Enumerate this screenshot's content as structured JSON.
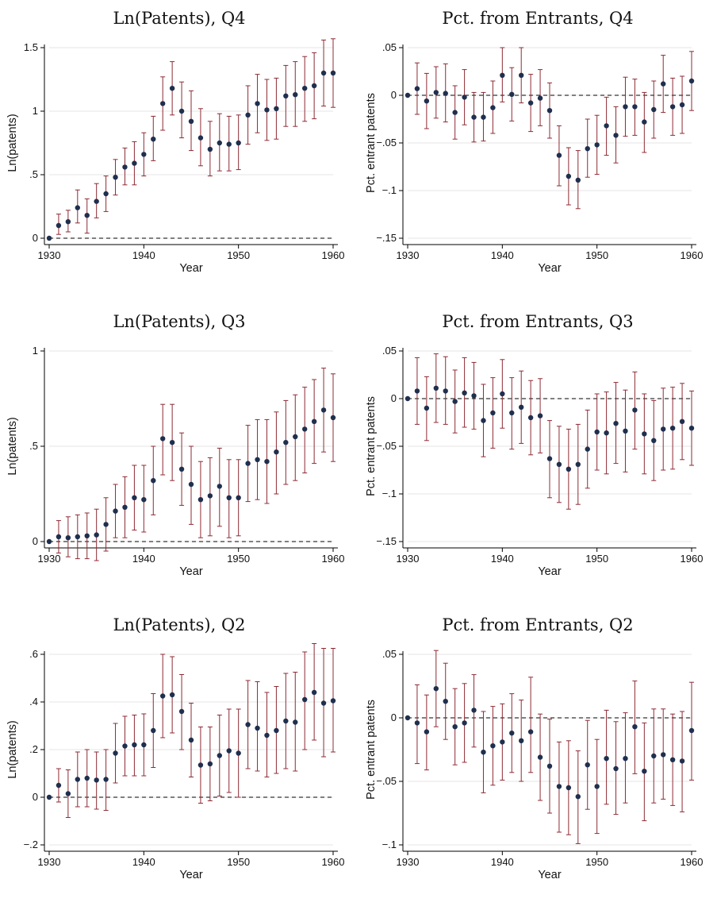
{
  "chart_data": [
    {
      "type": "scatter",
      "title": "Ln(Patents), Q4",
      "xlabel": "Year",
      "ylabel": "Ln(patents)",
      "xlim": [
        1930,
        1960
      ],
      "ylim": [
        0,
        1.5
      ],
      "xticks": [
        1930,
        1940,
        1950,
        1960
      ],
      "yticks": [
        0,
        0.5,
        1,
        1.5
      ],
      "yticklabels": [
        "0",
        ".5",
        "1",
        "1.5"
      ],
      "reference_line_y": 0,
      "grid": true,
      "x": [
        1930,
        1931,
        1932,
        1933,
        1934,
        1935,
        1936,
        1937,
        1938,
        1939,
        1940,
        1941,
        1942,
        1943,
        1944,
        1945,
        1946,
        1947,
        1948,
        1949,
        1950,
        1951,
        1952,
        1953,
        1954,
        1955,
        1956,
        1957,
        1958,
        1959,
        1960
      ],
      "y": [
        0,
        0.1,
        0.13,
        0.24,
        0.18,
        0.29,
        0.35,
        0.48,
        0.56,
        0.59,
        0.66,
        0.78,
        1.06,
        1.18,
        1.0,
        0.92,
        0.79,
        0.7,
        0.75,
        0.74,
        0.75,
        0.97,
        1.06,
        1.01,
        1.02,
        1.12,
        1.13,
        1.18,
        1.2,
        1.3,
        1.3
      ],
      "ci_low": [
        0,
        0.03,
        0.05,
        0.12,
        0.04,
        0.16,
        0.21,
        0.34,
        0.42,
        0.42,
        0.49,
        0.61,
        0.85,
        0.97,
        0.79,
        0.69,
        0.57,
        0.49,
        0.53,
        0.53,
        0.54,
        0.74,
        0.83,
        0.77,
        0.78,
        0.88,
        0.88,
        0.92,
        0.94,
        1.04,
        1.03
      ],
      "ci_high": [
        0,
        0.19,
        0.22,
        0.38,
        0.31,
        0.43,
        0.49,
        0.62,
        0.71,
        0.76,
        0.83,
        0.96,
        1.27,
        1.39,
        1.23,
        1.16,
        1.02,
        0.92,
        0.98,
        0.96,
        0.97,
        1.2,
        1.29,
        1.25,
        1.26,
        1.36,
        1.39,
        1.43,
        1.46,
        1.56,
        1.57
      ]
    },
    {
      "type": "scatter",
      "title": "Pct. from Entrants, Q4",
      "xlabel": "Year",
      "ylabel": "Pct. entrant patents",
      "xlim": [
        1930,
        1960
      ],
      "ylim": [
        -0.15,
        0.05
      ],
      "xticks": [
        1930,
        1940,
        1950,
        1960
      ],
      "yticks": [
        -0.15,
        -0.1,
        -0.05,
        0,
        0.05
      ],
      "yticklabels": [
        "-.15",
        "-.1",
        "-.05",
        "0",
        ".05"
      ],
      "reference_line_y": 0,
      "grid": true,
      "x": [
        1930,
        1931,
        1932,
        1933,
        1934,
        1935,
        1936,
        1937,
        1938,
        1939,
        1940,
        1941,
        1942,
        1943,
        1944,
        1945,
        1946,
        1947,
        1948,
        1949,
        1950,
        1951,
        1952,
        1953,
        1954,
        1955,
        1956,
        1957,
        1958,
        1959,
        1960
      ],
      "y": [
        0,
        0.007,
        -0.006,
        0.003,
        0.002,
        -0.018,
        -0.002,
        -0.023,
        -0.023,
        -0.013,
        0.021,
        0.001,
        0.021,
        -0.008,
        -0.003,
        -0.016,
        -0.063,
        -0.085,
        -0.089,
        -0.056,
        -0.052,
        -0.032,
        -0.042,
        -0.012,
        -0.012,
        -0.028,
        -0.015,
        0.012,
        -0.012,
        -0.01,
        0.015
      ],
      "ci_low": [
        0,
        -0.02,
        -0.035,
        -0.024,
        -0.028,
        -0.046,
        -0.031,
        -0.049,
        -0.048,
        -0.04,
        -0.007,
        -0.027,
        -0.008,
        -0.038,
        -0.032,
        -0.045,
        -0.095,
        -0.115,
        -0.119,
        -0.086,
        -0.083,
        -0.063,
        -0.071,
        -0.043,
        -0.042,
        -0.06,
        -0.045,
        -0.018,
        -0.042,
        -0.04,
        -0.016
      ],
      "ci_high": [
        0,
        0.034,
        0.023,
        0.03,
        0.033,
        0.01,
        0.027,
        0.003,
        0.003,
        0.015,
        0.05,
        0.029,
        0.05,
        0.022,
        0.027,
        0.013,
        -0.032,
        -0.055,
        -0.058,
        -0.025,
        -0.021,
        -0.002,
        -0.012,
        0.019,
        0.017,
        0.003,
        0.015,
        0.042,
        0.018,
        0.02,
        0.046
      ]
    },
    {
      "type": "scatter",
      "title": "Ln(Patents), Q3",
      "xlabel": "Year",
      "ylabel": "Ln(patents)",
      "xlim": [
        1930,
        1960
      ],
      "ylim": [
        0,
        1
      ],
      "xticks": [
        1930,
        1940,
        1950,
        1960
      ],
      "yticks": [
        0,
        0.5,
        1
      ],
      "yticklabels": [
        "0",
        ".5",
        "1"
      ],
      "reference_line_y": 0,
      "grid": true,
      "x": [
        1930,
        1931,
        1932,
        1933,
        1934,
        1935,
        1936,
        1937,
        1938,
        1939,
        1940,
        1941,
        1942,
        1943,
        1944,
        1945,
        1946,
        1947,
        1948,
        1949,
        1950,
        1951,
        1952,
        1953,
        1954,
        1955,
        1956,
        1957,
        1958,
        1959,
        1960
      ],
      "y": [
        0,
        0.025,
        0.02,
        0.025,
        0.03,
        0.035,
        0.09,
        0.16,
        0.18,
        0.23,
        0.22,
        0.32,
        0.54,
        0.52,
        0.38,
        0.3,
        0.22,
        0.24,
        0.29,
        0.23,
        0.23,
        0.41,
        0.43,
        0.42,
        0.47,
        0.52,
        0.55,
        0.59,
        0.63,
        0.69,
        0.65
      ],
      "ci_low": [
        0,
        -0.06,
        -0.08,
        -0.09,
        -0.09,
        -0.1,
        -0.05,
        0.02,
        0.02,
        0.06,
        0.05,
        0.14,
        0.35,
        0.32,
        0.19,
        0.09,
        0.02,
        0.03,
        0.08,
        0.02,
        0.03,
        0.21,
        0.22,
        0.2,
        0.25,
        0.3,
        0.32,
        0.36,
        0.41,
        0.47,
        0.42
      ],
      "ci_high": [
        0,
        0.11,
        0.13,
        0.14,
        0.15,
        0.17,
        0.23,
        0.3,
        0.34,
        0.4,
        0.4,
        0.5,
        0.72,
        0.72,
        0.57,
        0.5,
        0.42,
        0.44,
        0.49,
        0.43,
        0.43,
        0.61,
        0.64,
        0.64,
        0.68,
        0.74,
        0.77,
        0.81,
        0.85,
        0.91,
        0.88
      ]
    },
    {
      "type": "scatter",
      "title": "Pct. from Entrants, Q3",
      "xlabel": "Year",
      "ylabel": "Pct. entrant patents",
      "xlim": [
        1930,
        1960
      ],
      "ylim": [
        -0.15,
        0.05
      ],
      "xticks": [
        1930,
        1940,
        1950,
        1960
      ],
      "yticks": [
        -0.15,
        -0.1,
        -0.05,
        0,
        0.05
      ],
      "yticklabels": [
        "-.15",
        "-.1",
        "-.05",
        "0",
        ".05"
      ],
      "reference_line_y": 0,
      "grid": true,
      "x": [
        1930,
        1931,
        1932,
        1933,
        1934,
        1935,
        1936,
        1937,
        1938,
        1939,
        1940,
        1941,
        1942,
        1943,
        1944,
        1945,
        1946,
        1947,
        1948,
        1949,
        1950,
        1951,
        1952,
        1953,
        1954,
        1955,
        1956,
        1957,
        1958,
        1959,
        1960
      ],
      "y": [
        0,
        0.008,
        -0.01,
        0.011,
        0.008,
        -0.003,
        0.006,
        0.003,
        -0.023,
        -0.015,
        0.005,
        -0.015,
        -0.009,
        -0.02,
        -0.018,
        -0.063,
        -0.069,
        -0.074,
        -0.069,
        -0.053,
        -0.035,
        -0.036,
        -0.026,
        -0.034,
        -0.012,
        -0.037,
        -0.044,
        -0.032,
        -0.031,
        -0.024,
        -0.031
      ],
      "ci_low": [
        0,
        -0.027,
        -0.044,
        -0.025,
        -0.027,
        -0.036,
        -0.03,
        -0.032,
        -0.061,
        -0.052,
        -0.031,
        -0.053,
        -0.047,
        -0.059,
        -0.057,
        -0.104,
        -0.109,
        -0.116,
        -0.111,
        -0.094,
        -0.075,
        -0.079,
        -0.068,
        -0.077,
        -0.053,
        -0.079,
        -0.086,
        -0.075,
        -0.074,
        -0.064,
        -0.07
      ],
      "ci_high": [
        0,
        0.043,
        0.023,
        0.047,
        0.044,
        0.03,
        0.043,
        0.038,
        0.015,
        0.022,
        0.041,
        0.022,
        0.029,
        0.019,
        0.021,
        -0.023,
        -0.029,
        -0.032,
        -0.027,
        -0.012,
        0.005,
        0.007,
        0.017,
        0.009,
        0.028,
        0.005,
        -0.002,
        0.011,
        0.012,
        0.016,
        0.008
      ]
    },
    {
      "type": "scatter",
      "title": "Ln(Patents), Q2",
      "xlabel": "Year",
      "ylabel": "Ln(patents)",
      "xlim": [
        1930,
        1960
      ],
      "ylim": [
        -0.2,
        0.6
      ],
      "xticks": [
        1930,
        1940,
        1950,
        1960
      ],
      "yticks": [
        -0.2,
        0,
        0.2,
        0.4,
        0.6
      ],
      "yticklabels": [
        "-.2",
        "0",
        ".2",
        ".4",
        ".6"
      ],
      "reference_line_y": 0,
      "grid": true,
      "x": [
        1930,
        1931,
        1932,
        1933,
        1934,
        1935,
        1936,
        1937,
        1938,
        1939,
        1940,
        1941,
        1942,
        1943,
        1944,
        1945,
        1946,
        1947,
        1948,
        1949,
        1950,
        1951,
        1952,
        1953,
        1954,
        1955,
        1956,
        1957,
        1958,
        1959,
        1960
      ],
      "y": [
        0,
        0.05,
        0.015,
        0.075,
        0.08,
        0.072,
        0.075,
        0.185,
        0.215,
        0.22,
        0.22,
        0.28,
        0.425,
        0.43,
        0.36,
        0.24,
        0.135,
        0.14,
        0.175,
        0.195,
        0.185,
        0.305,
        0.29,
        0.26,
        0.28,
        0.32,
        0.315,
        0.41,
        0.44,
        0.395,
        0.405
      ],
      "ci_low": [
        0,
        -0.02,
        -0.085,
        -0.04,
        -0.04,
        -0.05,
        -0.055,
        0.06,
        0.09,
        0.09,
        0.09,
        0.125,
        0.25,
        0.27,
        0.2,
        0.085,
        -0.025,
        -0.015,
        0.005,
        0.02,
        0.0,
        0.12,
        0.11,
        0.085,
        0.1,
        0.12,
        0.11,
        0.2,
        0.24,
        0.17,
        0.19
      ],
      "ci_high": [
        0,
        0.12,
        0.115,
        0.19,
        0.2,
        0.19,
        0.2,
        0.31,
        0.34,
        0.345,
        0.35,
        0.435,
        0.6,
        0.59,
        0.515,
        0.395,
        0.295,
        0.295,
        0.345,
        0.37,
        0.37,
        0.49,
        0.485,
        0.44,
        0.465,
        0.52,
        0.525,
        0.61,
        0.645,
        0.625,
        0.625
      ]
    },
    {
      "type": "scatter",
      "title": "Pct. from Entrants, Q2",
      "xlabel": "Year",
      "ylabel": "Pct. entrant patents",
      "xlim": [
        1930,
        1960
      ],
      "ylim": [
        -0.1,
        0.05
      ],
      "xticks": [
        1930,
        1940,
        1950,
        1960
      ],
      "yticks": [
        -0.1,
        -0.05,
        0,
        0.05
      ],
      "yticklabels": [
        "-.1",
        "-.05",
        "0",
        ".05"
      ],
      "reference_line_y": 0,
      "grid": true,
      "x": [
        1930,
        1931,
        1932,
        1933,
        1934,
        1935,
        1936,
        1937,
        1938,
        1939,
        1940,
        1941,
        1942,
        1943,
        1944,
        1945,
        1946,
        1947,
        1948,
        1949,
        1950,
        1951,
        1952,
        1953,
        1954,
        1955,
        1956,
        1957,
        1958,
        1959,
        1960
      ],
      "y": [
        0,
        -0.004,
        -0.011,
        0.023,
        0.013,
        -0.007,
        -0.004,
        0.006,
        -0.027,
        -0.022,
        -0.019,
        -0.012,
        -0.018,
        -0.011,
        -0.031,
        -0.038,
        -0.054,
        -0.055,
        -0.062,
        -0.037,
        -0.054,
        -0.032,
        -0.04,
        -0.032,
        -0.007,
        -0.042,
        -0.03,
        -0.029,
        -0.033,
        -0.034,
        -0.01
      ],
      "ci_low": [
        0,
        -0.036,
        -0.041,
        -0.007,
        -0.017,
        -0.037,
        -0.035,
        -0.023,
        -0.059,
        -0.053,
        -0.049,
        -0.043,
        -0.05,
        -0.043,
        -0.065,
        -0.075,
        -0.09,
        -0.092,
        -0.099,
        -0.072,
        -0.091,
        -0.068,
        -0.076,
        -0.067,
        -0.044,
        -0.081,
        -0.067,
        -0.064,
        -0.069,
        -0.074,
        -0.049
      ],
      "ci_high": [
        0,
        0.026,
        0.018,
        0.053,
        0.043,
        0.023,
        0.027,
        0.034,
        0.005,
        0.009,
        0.011,
        0.019,
        0.014,
        0.032,
        0.003,
        -0.001,
        -0.019,
        -0.018,
        -0.026,
        -0.002,
        -0.017,
        0.006,
        -0.003,
        0.004,
        0.029,
        -0.004,
        0.007,
        0.007,
        0.003,
        0.005,
        0.028
      ]
    }
  ],
  "colors": {
    "marker": "#1f2f4e",
    "error_bar": "#8c2b34",
    "reference_line": "#000000",
    "grid": "#e6e6e6",
    "axis": "#000000"
  }
}
